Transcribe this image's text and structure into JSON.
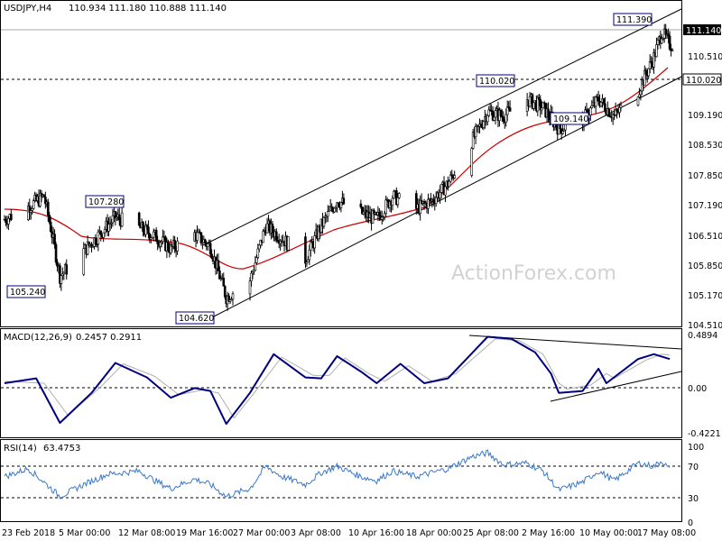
{
  "header": {
    "symbol": "USDJPY,H4",
    "ohlc": "110.934 111.180 110.888 111.140",
    "watermark": "ActionForex.com"
  },
  "chart_data": [
    {
      "type": "candlestick",
      "panel": "price",
      "title": "USDJPY,H4",
      "ylim": [
        104.25,
        111.85
      ],
      "y_ticks": [
        "111.140",
        "110.510",
        "109.190",
        "108.530",
        "107.850",
        "107.190",
        "106.510",
        "105.850",
        "105.170",
        "104.510"
      ],
      "y_tick_values": [
        111.14,
        110.51,
        109.19,
        108.53,
        107.85,
        107.19,
        106.51,
        105.85,
        105.17,
        104.51
      ],
      "current_price": "111.140",
      "horizontal_level": "110.020",
      "annotations": [
        {
          "label": "111.390",
          "date": "2018-05-17",
          "value": 111.39
        },
        {
          "label": "110.020",
          "date": "2018-04-25",
          "value": 110.02
        },
        {
          "label": "109.140",
          "date": "2018-05-08",
          "value": 109.14
        },
        {
          "label": "107.280",
          "date": "2018-03-12",
          "value": 107.28
        },
        {
          "label": "105.240",
          "date": "2018-03-02",
          "value": 105.24
        },
        {
          "label": "104.620",
          "date": "2018-03-23",
          "value": 104.62
        }
      ],
      "close_path": [
        {
          "date": "2018-02-23",
          "value": 106.75
        },
        {
          "date": "2018-02-26",
          "value": 107.05
        },
        {
          "date": "2018-02-28",
          "value": 107.3
        },
        {
          "date": "2018-03-01",
          "value": 106.4
        },
        {
          "date": "2018-03-02",
          "value": 105.4
        },
        {
          "date": "2018-03-05",
          "value": 106.0
        },
        {
          "date": "2018-03-07",
          "value": 106.4
        },
        {
          "date": "2018-03-09",
          "value": 106.8
        },
        {
          "date": "2018-03-12",
          "value": 106.55
        },
        {
          "date": "2018-03-14",
          "value": 106.35
        },
        {
          "date": "2018-03-16",
          "value": 106.05
        },
        {
          "date": "2018-03-19",
          "value": 106.4
        },
        {
          "date": "2018-03-21",
          "value": 106.1
        },
        {
          "date": "2018-03-23",
          "value": 104.9
        },
        {
          "date": "2018-03-26",
          "value": 105.3
        },
        {
          "date": "2018-03-28",
          "value": 106.6
        },
        {
          "date": "2018-03-30",
          "value": 106.3
        },
        {
          "date": "2018-04-02",
          "value": 105.8
        },
        {
          "date": "2018-04-04",
          "value": 106.6
        },
        {
          "date": "2018-04-06",
          "value": 107.2
        },
        {
          "date": "2018-04-09",
          "value": 106.9
        },
        {
          "date": "2018-04-11",
          "value": 106.75
        },
        {
          "date": "2018-04-13",
          "value": 107.3
        },
        {
          "date": "2018-04-16",
          "value": 107.0
        },
        {
          "date": "2018-04-18",
          "value": 107.2
        },
        {
          "date": "2018-04-20",
          "value": 107.6
        },
        {
          "date": "2018-04-23",
          "value": 108.6
        },
        {
          "date": "2018-04-25",
          "value": 109.3
        },
        {
          "date": "2018-04-27",
          "value": 109.2
        },
        {
          "date": "2018-04-30",
          "value": 109.6
        },
        {
          "date": "2018-05-02",
          "value": 109.4
        },
        {
          "date": "2018-05-04",
          "value": 108.9
        },
        {
          "date": "2018-05-07",
          "value": 109.1
        },
        {
          "date": "2018-05-09",
          "value": 109.6
        },
        {
          "date": "2018-05-11",
          "value": 109.2
        },
        {
          "date": "2018-05-14",
          "value": 109.8
        },
        {
          "date": "2018-05-16",
          "value": 110.6
        },
        {
          "date": "2018-05-17",
          "value": 111.2
        },
        {
          "date": "2018-05-18",
          "value": 110.9
        }
      ]
    },
    {
      "type": "line",
      "panel": "macd",
      "title": "MACD(12,26,9)",
      "values_text": "0.2457 0.2911",
      "ylim": [
        -0.55,
        0.55
      ],
      "y_ticks": [
        "0.4894",
        "0.00",
        "-0.4221"
      ],
      "y_tick_values": [
        0.4894,
        0.0,
        -0.4221
      ],
      "series": [
        {
          "name": "MACD",
          "points": [
            {
              "date": "2018-02-23",
              "value": 0.0
            },
            {
              "date": "2018-02-27",
              "value": 0.05
            },
            {
              "date": "2018-03-02",
              "value": -0.41
            },
            {
              "date": "2018-03-06",
              "value": -0.1
            },
            {
              "date": "2018-03-09",
              "value": 0.21
            },
            {
              "date": "2018-03-13",
              "value": 0.06
            },
            {
              "date": "2018-03-16",
              "value": -0.15
            },
            {
              "date": "2018-03-19",
              "value": -0.05
            },
            {
              "date": "2018-03-21",
              "value": -0.08
            },
            {
              "date": "2018-03-23",
              "value": -0.42
            },
            {
              "date": "2018-03-26",
              "value": -0.1
            },
            {
              "date": "2018-03-29",
              "value": 0.3
            },
            {
              "date": "2018-04-02",
              "value": 0.06
            },
            {
              "date": "2018-04-04",
              "value": 0.05
            },
            {
              "date": "2018-04-06",
              "value": 0.28
            },
            {
              "date": "2018-04-09",
              "value": 0.12
            },
            {
              "date": "2018-04-11",
              "value": 0.0
            },
            {
              "date": "2018-04-14",
              "value": 0.2
            },
            {
              "date": "2018-04-17",
              "value": 0.0
            },
            {
              "date": "2018-04-20",
              "value": 0.05
            },
            {
              "date": "2018-04-25",
              "value": 0.48
            },
            {
              "date": "2018-04-28",
              "value": 0.46
            },
            {
              "date": "2018-05-01",
              "value": 0.32
            },
            {
              "date": "2018-05-03",
              "value": 0.1
            },
            {
              "date": "2018-05-04",
              "value": -0.1
            },
            {
              "date": "2018-05-07",
              "value": -0.08
            },
            {
              "date": "2018-05-09",
              "value": 0.15
            },
            {
              "date": "2018-05-10",
              "value": 0.0
            },
            {
              "date": "2018-05-14",
              "value": 0.25
            },
            {
              "date": "2018-05-16",
              "value": 0.3
            },
            {
              "date": "2018-05-18",
              "value": 0.25
            }
          ]
        },
        {
          "name": "Signal",
          "points": [
            {
              "date": "2018-02-23",
              "value": 0.02
            },
            {
              "date": "2018-02-28",
              "value": 0.0
            },
            {
              "date": "2018-03-03",
              "value": -0.33
            },
            {
              "date": "2018-03-07",
              "value": -0.05
            },
            {
              "date": "2018-03-10",
              "value": 0.2
            },
            {
              "date": "2018-03-14",
              "value": 0.07
            },
            {
              "date": "2018-03-17",
              "value": -0.12
            },
            {
              "date": "2018-03-20",
              "value": -0.07
            },
            {
              "date": "2018-03-22",
              "value": -0.1
            },
            {
              "date": "2018-03-24",
              "value": -0.36
            },
            {
              "date": "2018-03-27",
              "value": -0.05
            },
            {
              "date": "2018-03-30",
              "value": 0.27
            },
            {
              "date": "2018-04-03",
              "value": 0.08
            },
            {
              "date": "2018-04-05",
              "value": 0.08
            },
            {
              "date": "2018-04-07",
              "value": 0.26
            },
            {
              "date": "2018-04-10",
              "value": 0.1
            },
            {
              "date": "2018-04-12",
              "value": 0.02
            },
            {
              "date": "2018-04-15",
              "value": 0.18
            },
            {
              "date": "2018-04-18",
              "value": 0.02
            },
            {
              "date": "2018-04-21",
              "value": 0.1
            },
            {
              "date": "2018-04-26",
              "value": 0.46
            },
            {
              "date": "2018-04-29",
              "value": 0.44
            },
            {
              "date": "2018-05-02",
              "value": 0.3
            },
            {
              "date": "2018-05-04",
              "value": 0.0
            },
            {
              "date": "2018-05-05",
              "value": -0.06
            },
            {
              "date": "2018-05-08",
              "value": -0.02
            },
            {
              "date": "2018-05-10",
              "value": 0.1
            },
            {
              "date": "2018-05-11",
              "value": 0.05
            },
            {
              "date": "2018-05-15",
              "value": 0.24
            },
            {
              "date": "2018-05-17",
              "value": 0.3
            },
            {
              "date": "2018-05-18",
              "value": 0.29
            }
          ]
        }
      ]
    },
    {
      "type": "line",
      "panel": "rsi",
      "title": "RSI(14)",
      "values_text": "63.4753",
      "ylim": [
        0,
        100
      ],
      "y_ticks": [
        "100",
        "70",
        "30",
        "0"
      ],
      "y_tick_values": [
        100,
        70,
        30,
        0
      ],
      "series": [
        {
          "name": "RSI",
          "points": [
            {
              "date": "2018-02-23",
              "value": 55
            },
            {
              "date": "2018-02-26",
              "value": 65
            },
            {
              "date": "2018-02-28",
              "value": 48
            },
            {
              "date": "2018-03-02",
              "value": 30
            },
            {
              "date": "2018-03-05",
              "value": 45
            },
            {
              "date": "2018-03-08",
              "value": 58
            },
            {
              "date": "2018-03-12",
              "value": 62
            },
            {
              "date": "2018-03-14",
              "value": 50
            },
            {
              "date": "2018-03-16",
              "value": 40
            },
            {
              "date": "2018-03-19",
              "value": 52
            },
            {
              "date": "2018-03-21",
              "value": 45
            },
            {
              "date": "2018-03-23",
              "value": 30
            },
            {
              "date": "2018-03-26",
              "value": 40
            },
            {
              "date": "2018-03-28",
              "value": 68
            },
            {
              "date": "2018-03-30",
              "value": 55
            },
            {
              "date": "2018-04-02",
              "value": 45
            },
            {
              "date": "2018-04-04",
              "value": 60
            },
            {
              "date": "2018-04-06",
              "value": 68
            },
            {
              "date": "2018-04-09",
              "value": 55
            },
            {
              "date": "2018-04-11",
              "value": 50
            },
            {
              "date": "2018-04-13",
              "value": 62
            },
            {
              "date": "2018-04-16",
              "value": 55
            },
            {
              "date": "2018-04-18",
              "value": 60
            },
            {
              "date": "2018-04-20",
              "value": 65
            },
            {
              "date": "2018-04-23",
              "value": 80
            },
            {
              "date": "2018-04-25",
              "value": 85
            },
            {
              "date": "2018-04-27",
              "value": 70
            },
            {
              "date": "2018-04-30",
              "value": 72
            },
            {
              "date": "2018-05-02",
              "value": 62
            },
            {
              "date": "2018-05-04",
              "value": 38
            },
            {
              "date": "2018-05-07",
              "value": 48
            },
            {
              "date": "2018-05-09",
              "value": 62
            },
            {
              "date": "2018-05-11",
              "value": 50
            },
            {
              "date": "2018-05-14",
              "value": 72
            },
            {
              "date": "2018-05-16",
              "value": 68
            },
            {
              "date": "2018-05-17",
              "value": 75
            },
            {
              "date": "2018-05-18",
              "value": 63.5
            }
          ]
        }
      ]
    }
  ],
  "x_axis": {
    "ticks": [
      "23 Feb 2018",
      "5 Mar 00:00",
      "12 Mar 08:00",
      "19 Mar 16:00",
      "27 Mar 00:00",
      "3 Apr 08:00",
      "10 Apr 16:00",
      "18 Apr 00:00",
      "25 Apr 08:00",
      "2 May 16:00",
      "10 May 00:00",
      "17 May 08:00"
    ]
  }
}
